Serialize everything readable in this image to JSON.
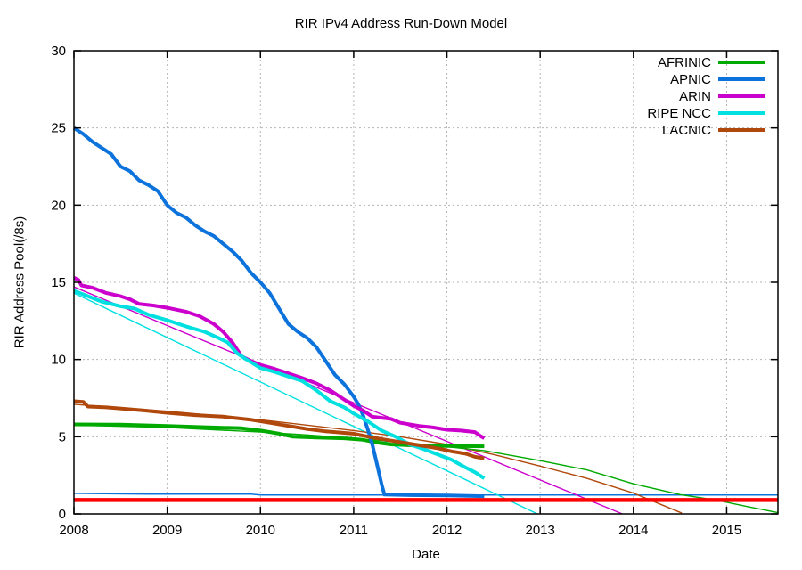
{
  "chart_data": {
    "type": "line",
    "title": "RIR IPv4 Address Run-Down Model",
    "xlabel": "Date",
    "ylabel": "RIR Address Pool(/8s)",
    "xlim": [
      2008,
      2015.55
    ],
    "ylim": [
      0,
      30
    ],
    "x_ticks": [
      2008,
      2009,
      2010,
      2011,
      2012,
      2013,
      2014,
      2015
    ],
    "y_ticks": [
      0,
      5,
      10,
      15,
      20,
      25,
      30
    ],
    "grid": true,
    "legend_position": "top-right-inside",
    "style": {
      "background": "#ffffff",
      "grid_color": "#b4b4b4",
      "axis_color": "#000000",
      "text_color": "#000000"
    },
    "legend": [
      "AFRINIC",
      "APNIC",
      "ARIN",
      "RIPE NCC",
      "LACNIC"
    ],
    "series": [
      {
        "name": "apnic-model",
        "label": "",
        "in_legend": false,
        "role": "model-projection",
        "color": "#0d73dc",
        "width": 1.5,
        "points": [
          [
            2008,
            1.33
          ],
          [
            2008.8,
            1.28
          ],
          [
            2009.9,
            1.28
          ],
          [
            2010,
            1.23
          ],
          [
            2015.55,
            1.23
          ]
        ]
      },
      {
        "name": "arin-model",
        "label": "",
        "in_legend": false,
        "role": "model-projection",
        "color": "#cc00cc",
        "width": 1.4,
        "points": [
          [
            2008,
            14.7
          ],
          [
            2013.88,
            0
          ]
        ]
      },
      {
        "name": "ripe-ncc-model",
        "label": "",
        "in_legend": false,
        "role": "model-projection",
        "color": "#00e0e0",
        "width": 1.4,
        "points": [
          [
            2008,
            14.3
          ],
          [
            2012.97,
            0
          ]
        ]
      },
      {
        "name": "lacnic-model",
        "label": "",
        "in_legend": false,
        "role": "model-projection",
        "color": "#b0480c",
        "width": 1.4,
        "points": [
          [
            2008,
            7.1
          ],
          [
            2009,
            6.65
          ],
          [
            2010,
            6.1
          ],
          [
            2011,
            5.4
          ],
          [
            2011.5,
            5.0
          ],
          [
            2012,
            4.5
          ],
          [
            2012.5,
            3.85
          ],
          [
            2013,
            3.1
          ],
          [
            2013.5,
            2.3
          ],
          [
            2014,
            1.35
          ],
          [
            2014.52,
            0.05
          ]
        ]
      },
      {
        "name": "afrinic-model",
        "label": "",
        "in_legend": false,
        "role": "model-projection",
        "color": "#00aa00",
        "width": 1.4,
        "points": [
          [
            2008,
            5.75
          ],
          [
            2009,
            5.6
          ],
          [
            2010,
            5.3
          ],
          [
            2010.5,
            5.12
          ],
          [
            2011,
            4.9
          ],
          [
            2011.5,
            4.65
          ],
          [
            2012,
            4.35
          ],
          [
            2012.4,
            4.1
          ],
          [
            2013,
            3.45
          ],
          [
            2013.5,
            2.85
          ],
          [
            2014,
            1.95
          ],
          [
            2014.5,
            1.25
          ],
          [
            2014.9,
            0.88
          ],
          [
            2015.2,
            0.5
          ],
          [
            2015.55,
            0.08
          ]
        ]
      },
      {
        "name": "exhaustion-threshold",
        "label": "",
        "in_legend": false,
        "role": "threshold",
        "color": "#fe0000",
        "width": 4.5,
        "points": [
          [
            2008,
            0.9
          ],
          [
            2015.55,
            0.9
          ]
        ]
      },
      {
        "name": "afrinic",
        "label": "AFRINIC",
        "in_legend": true,
        "role": "data",
        "color": "#00aa00",
        "width": 4,
        "points": [
          [
            2008,
            5.8
          ],
          [
            2008.5,
            5.78
          ],
          [
            2009,
            5.7
          ],
          [
            2009.4,
            5.62
          ],
          [
            2009.8,
            5.55
          ],
          [
            2010,
            5.4
          ],
          [
            2010.2,
            5.2
          ],
          [
            2010.35,
            5.0
          ],
          [
            2010.6,
            4.95
          ],
          [
            2010.9,
            4.9
          ],
          [
            2011.1,
            4.8
          ],
          [
            2011.25,
            4.62
          ],
          [
            2011.4,
            4.5
          ],
          [
            2011.7,
            4.42
          ],
          [
            2012,
            4.4
          ],
          [
            2012.4,
            4.38
          ]
        ]
      },
      {
        "name": "apnic",
        "label": "APNIC",
        "in_legend": true,
        "role": "data",
        "color": "#0d73dc",
        "width": 4,
        "points": [
          [
            2008,
            25
          ],
          [
            2008.1,
            24.6
          ],
          [
            2008.2,
            24.1
          ],
          [
            2008.3,
            23.7
          ],
          [
            2008.4,
            23.3
          ],
          [
            2008.5,
            22.5
          ],
          [
            2008.6,
            22.2
          ],
          [
            2008.7,
            21.6
          ],
          [
            2008.8,
            21.3
          ],
          [
            2008.9,
            20.9
          ],
          [
            2009,
            20
          ],
          [
            2009.1,
            19.5
          ],
          [
            2009.2,
            19.2
          ],
          [
            2009.3,
            18.7
          ],
          [
            2009.4,
            18.3
          ],
          [
            2009.5,
            18
          ],
          [
            2009.6,
            17.5
          ],
          [
            2009.7,
            17
          ],
          [
            2009.8,
            16.4
          ],
          [
            2009.9,
            15.6
          ],
          [
            2010,
            15
          ],
          [
            2010.1,
            14.3
          ],
          [
            2010.2,
            13.3
          ],
          [
            2010.3,
            12.3
          ],
          [
            2010.4,
            11.8
          ],
          [
            2010.5,
            11.4
          ],
          [
            2010.6,
            10.8
          ],
          [
            2010.7,
            9.9
          ],
          [
            2010.8,
            9
          ],
          [
            2010.9,
            8.4
          ],
          [
            2011,
            7.6
          ],
          [
            2011.05,
            7.1
          ],
          [
            2011.1,
            6.4
          ],
          [
            2011.15,
            5.5
          ],
          [
            2011.2,
            4.5
          ],
          [
            2011.25,
            3.2
          ],
          [
            2011.3,
            1.9
          ],
          [
            2011.33,
            1.25
          ],
          [
            2011.6,
            1.22
          ],
          [
            2012,
            1.2
          ],
          [
            2012.4,
            1.15
          ]
        ]
      },
      {
        "name": "arin",
        "label": "ARIN",
        "in_legend": true,
        "role": "data",
        "color": "#cc00cc",
        "width": 4,
        "points": [
          [
            2008,
            15.3
          ],
          [
            2008.05,
            15.15
          ],
          [
            2008.08,
            14.8
          ],
          [
            2008.2,
            14.65
          ],
          [
            2008.35,
            14.3
          ],
          [
            2008.5,
            14.1
          ],
          [
            2008.6,
            13.9
          ],
          [
            2008.7,
            13.6
          ],
          [
            2008.85,
            13.5
          ],
          [
            2009,
            13.35
          ],
          [
            2009.2,
            13.1
          ],
          [
            2009.35,
            12.8
          ],
          [
            2009.5,
            12.3
          ],
          [
            2009.6,
            11.8
          ],
          [
            2009.7,
            11.1
          ],
          [
            2009.8,
            10.2
          ],
          [
            2009.9,
            9.9
          ],
          [
            2010,
            9.65
          ],
          [
            2010.15,
            9.4
          ],
          [
            2010.3,
            9.1
          ],
          [
            2010.45,
            8.8
          ],
          [
            2010.6,
            8.45
          ],
          [
            2010.75,
            8
          ],
          [
            2010.9,
            7.4
          ],
          [
            2011,
            7
          ],
          [
            2011.1,
            6.7
          ],
          [
            2011.2,
            6.3
          ],
          [
            2011.4,
            6.15
          ],
          [
            2011.5,
            5.9
          ],
          [
            2011.7,
            5.7
          ],
          [
            2011.85,
            5.6
          ],
          [
            2012,
            5.45
          ],
          [
            2012.15,
            5.4
          ],
          [
            2012.3,
            5.3
          ],
          [
            2012.36,
            5.05
          ],
          [
            2012.4,
            4.9
          ]
        ]
      },
      {
        "name": "ripe-ncc",
        "label": "RIPE NCC",
        "in_legend": true,
        "role": "data",
        "color": "#00e0e0",
        "width": 4,
        "points": [
          [
            2008,
            14.45
          ],
          [
            2008.15,
            14.1
          ],
          [
            2008.3,
            13.75
          ],
          [
            2008.5,
            13.45
          ],
          [
            2008.65,
            13.3
          ],
          [
            2008.8,
            12.9
          ],
          [
            2009,
            12.55
          ],
          [
            2009.2,
            12.15
          ],
          [
            2009.4,
            11.8
          ],
          [
            2009.55,
            11.4
          ],
          [
            2009.65,
            11.1
          ],
          [
            2009.75,
            10.4
          ],
          [
            2009.85,
            10
          ],
          [
            2010,
            9.45
          ],
          [
            2010.15,
            9.2
          ],
          [
            2010.3,
            8.9
          ],
          [
            2010.45,
            8.6
          ],
          [
            2010.6,
            8
          ],
          [
            2010.75,
            7.3
          ],
          [
            2010.9,
            6.9
          ],
          [
            2011,
            6.5
          ],
          [
            2011.15,
            6
          ],
          [
            2011.3,
            5.4
          ],
          [
            2011.45,
            5
          ],
          [
            2011.6,
            4.5
          ],
          [
            2011.75,
            4.2
          ],
          [
            2011.9,
            3.85
          ],
          [
            2012.05,
            3.5
          ],
          [
            2012.2,
            3
          ],
          [
            2012.3,
            2.7
          ],
          [
            2012.4,
            2.3
          ]
        ]
      },
      {
        "name": "lacnic",
        "label": "LACNIC",
        "in_legend": true,
        "role": "data",
        "color": "#b0480c",
        "width": 4,
        "points": [
          [
            2008,
            7.3
          ],
          [
            2008.1,
            7.25
          ],
          [
            2008.15,
            6.95
          ],
          [
            2008.35,
            6.9
          ],
          [
            2008.55,
            6.8
          ],
          [
            2008.75,
            6.7
          ],
          [
            2009,
            6.55
          ],
          [
            2009.3,
            6.4
          ],
          [
            2009.6,
            6.3
          ],
          [
            2009.9,
            6.1
          ],
          [
            2010.1,
            5.9
          ],
          [
            2010.3,
            5.7
          ],
          [
            2010.5,
            5.5
          ],
          [
            2010.7,
            5.35
          ],
          [
            2010.9,
            5.25
          ],
          [
            2011,
            5.2
          ],
          [
            2011.2,
            4.95
          ],
          [
            2011.35,
            4.8
          ],
          [
            2011.5,
            4.65
          ],
          [
            2011.7,
            4.45
          ],
          [
            2011.9,
            4.25
          ],
          [
            2012.05,
            4.05
          ],
          [
            2012.2,
            3.9
          ],
          [
            2012.3,
            3.7
          ],
          [
            2012.4,
            3.6
          ]
        ]
      }
    ]
  }
}
